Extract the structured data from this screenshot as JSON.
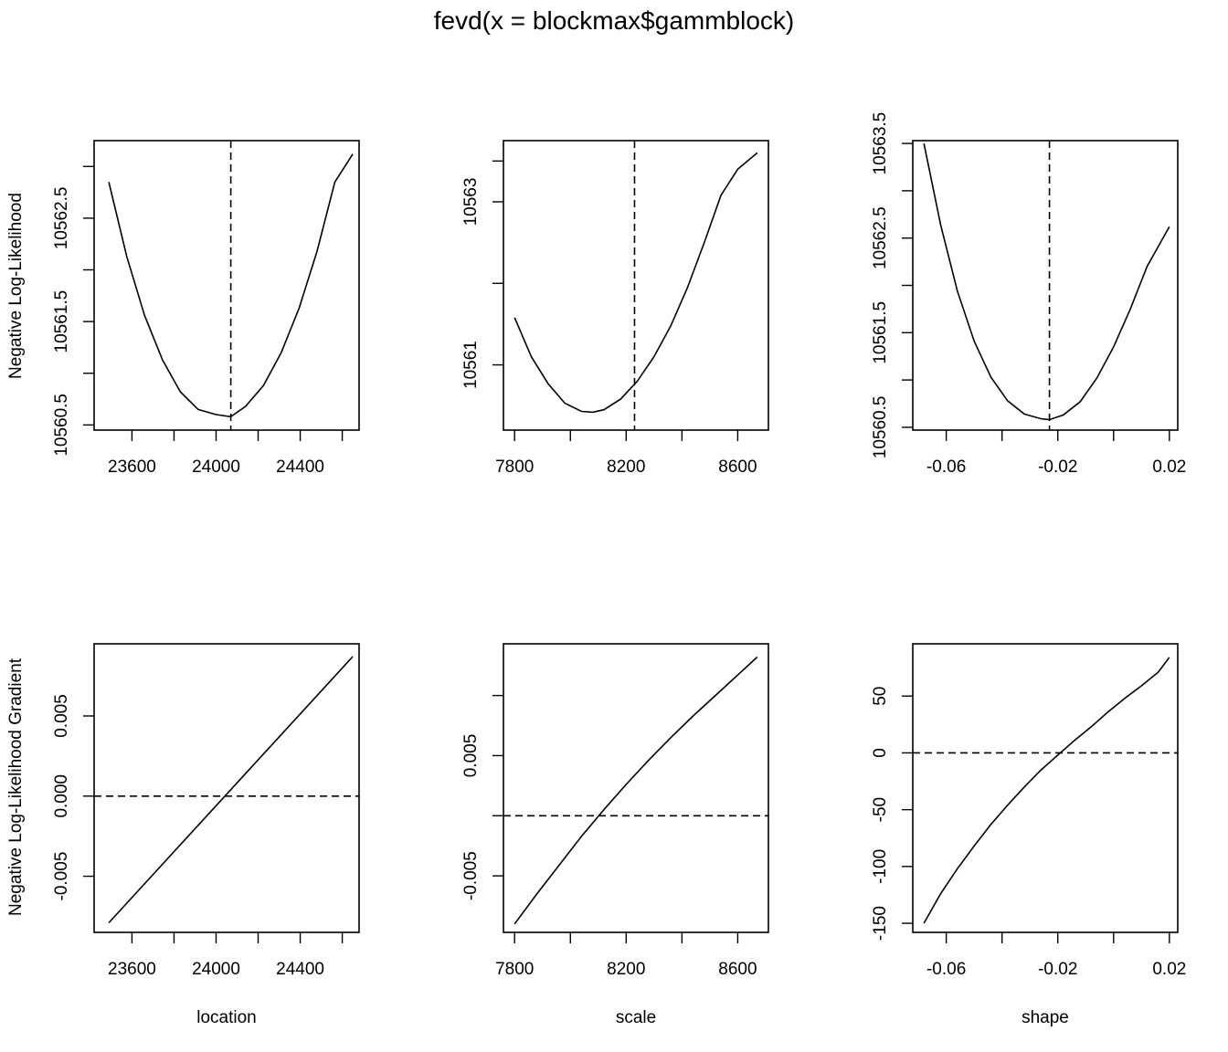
{
  "title": "fevd(x = blockmax$gammblock)",
  "row_labels": [
    "Negative Log-Likelihood",
    "Negative Log-Likelihood Gradient"
  ],
  "col_labels": [
    "location",
    "scale",
    "shape"
  ],
  "chart_data": [
    {
      "type": "line",
      "row": 0,
      "col": 0,
      "grid": false,
      "xlim": [
        23420,
        24680
      ],
      "ylim": [
        10560.45,
        10563.25
      ],
      "xticks": [
        23600,
        23800,
        24000,
        24200,
        24400,
        24600
      ],
      "xtick_labels": [
        "23600",
        "",
        "24000",
        "",
        "24400",
        ""
      ],
      "yticks": [
        10560.5,
        10561,
        10561.5,
        10562,
        10562.5,
        10563
      ],
      "ytick_labels": [
        "10560.5",
        "",
        "10561.5",
        "",
        "10562.5",
        ""
      ],
      "series": [
        {
          "style": "solid",
          "x": [
            23490,
            23575,
            23660,
            23745,
            23830,
            23915,
            24000,
            24070,
            24140,
            24225,
            24310,
            24395,
            24480,
            24565,
            24650
          ],
          "y": [
            10562.85,
            10562.13,
            10561.56,
            10561.13,
            10560.82,
            10560.65,
            10560.6,
            10560.58,
            10560.68,
            10560.88,
            10561.2,
            10561.63,
            10562.18,
            10562.85,
            10563.12
          ]
        },
        {
          "style": "dashed",
          "vline": 24070
        }
      ]
    },
    {
      "type": "line",
      "row": 0,
      "col": 1,
      "grid": false,
      "xlim": [
        7760,
        8710
      ],
      "ylim": [
        10560.2,
        10563.75
      ],
      "xticks": [
        7800,
        8000,
        8200,
        8400,
        8600
      ],
      "xtick_labels": [
        "7800",
        "",
        "8200",
        "",
        "8600"
      ],
      "yticks": [
        10561,
        10562,
        10563
      ],
      "ytick_labels": [
        "10561",
        "",
        "10563"
      ],
      "extra_yticks": [
        10563.5
      ],
      "series": [
        {
          "style": "solid",
          "x": [
            7800,
            7860,
            7920,
            7980,
            8040,
            8080,
            8120,
            8180,
            8240,
            8300,
            8360,
            8420,
            8480,
            8540,
            8600,
            8670
          ],
          "y": [
            10561.58,
            10561.1,
            10560.77,
            10560.53,
            10560.43,
            10560.42,
            10560.45,
            10560.58,
            10560.8,
            10561.1,
            10561.48,
            10561.95,
            10562.5,
            10563.08,
            10563.4,
            10563.6
          ]
        },
        {
          "style": "dashed",
          "vline": 8230
        }
      ]
    },
    {
      "type": "line",
      "row": 0,
      "col": 2,
      "grid": false,
      "xlim": [
        -0.072,
        0.023
      ],
      "ylim": [
        10560.47,
        10563.53
      ],
      "xticks": [
        -0.06,
        -0.04,
        -0.02,
        0,
        0.02
      ],
      "xtick_labels": [
        "-0.06",
        "",
        "-0.02",
        "",
        "0.02"
      ],
      "yticks": [
        10560.5,
        10561,
        10561.5,
        10562,
        10562.5,
        10563,
        10563.5
      ],
      "ytick_labels": [
        "10560.5",
        "",
        "10561.5",
        "",
        "10562.5",
        "",
        "10563.5"
      ],
      "series": [
        {
          "style": "solid",
          "x": [
            -0.068,
            -0.062,
            -0.056,
            -0.05,
            -0.044,
            -0.038,
            -0.032,
            -0.026,
            -0.023,
            -0.018,
            -0.012,
            -0.006,
            0,
            0.006,
            0.012,
            0.02
          ],
          "y": [
            10563.5,
            10562.64,
            10561.94,
            10561.41,
            10561.03,
            10560.78,
            10560.64,
            10560.59,
            10560.58,
            10560.63,
            10560.77,
            10561.02,
            10561.35,
            10561.75,
            10562.2,
            10562.62
          ]
        },
        {
          "style": "dashed",
          "vline": -0.023
        }
      ]
    },
    {
      "type": "line",
      "row": 1,
      "col": 0,
      "grid": false,
      "xlim": [
        23420,
        24680
      ],
      "ylim": [
        -0.0085,
        0.0095
      ],
      "xticks": [
        23600,
        23800,
        24000,
        24200,
        24400,
        24600
      ],
      "xtick_labels": [
        "23600",
        "",
        "24000",
        "",
        "24400",
        ""
      ],
      "yticks": [
        -0.005,
        0,
        0.005
      ],
      "ytick_labels": [
        "-0.005",
        "0.000",
        "0.005"
      ],
      "series": [
        {
          "style": "solid",
          "x": [
            23490,
            24650
          ],
          "y": [
            -0.0079,
            0.0087
          ]
        },
        {
          "style": "dashed",
          "hline": 0
        }
      ]
    },
    {
      "type": "line",
      "row": 1,
      "col": 1,
      "grid": false,
      "xlim": [
        7760,
        8710
      ],
      "ylim": [
        -0.0097,
        0.0143
      ],
      "xticks": [
        7800,
        8000,
        8200,
        8400,
        8600
      ],
      "xtick_labels": [
        "7800",
        "",
        "8200",
        "",
        "8600"
      ],
      "yticks": [
        -0.005,
        0,
        0.005,
        0.01
      ],
      "ytick_labels": [
        "-0.005",
        "",
        "0.005",
        ""
      ],
      "series": [
        {
          "style": "solid",
          "x": [
            7800,
            7880,
            7960,
            8040,
            8120,
            8200,
            8280,
            8360,
            8440,
            8520,
            8600,
            8670
          ],
          "y": [
            -0.009,
            -0.0065,
            -0.0041,
            -0.0017,
            0.0005,
            0.0026,
            0.0046,
            0.0065,
            0.0083,
            0.01,
            0.0117,
            0.0132
          ]
        },
        {
          "style": "dashed",
          "hline": 0
        }
      ]
    },
    {
      "type": "line",
      "row": 1,
      "col": 2,
      "grid": false,
      "xlim": [
        -0.072,
        0.023
      ],
      "ylim": [
        -158,
        96
      ],
      "xticks": [
        -0.06,
        -0.04,
        -0.02,
        0,
        0.02
      ],
      "xtick_labels": [
        "-0.06",
        "",
        "-0.02",
        "",
        "0.02"
      ],
      "yticks": [
        -150,
        -100,
        -50,
        0,
        50
      ],
      "ytick_labels": [
        "-150",
        "-100",
        "-50",
        "0",
        "50"
      ],
      "series": [
        {
          "style": "solid",
          "x": [
            -0.068,
            -0.062,
            -0.056,
            -0.05,
            -0.044,
            -0.038,
            -0.032,
            -0.026,
            -0.02,
            -0.014,
            -0.008,
            -0.002,
            0.004,
            0.01,
            0.016,
            0.02
          ],
          "y": [
            -150,
            -124,
            -102,
            -82,
            -63,
            -46,
            -30,
            -15,
            -2,
            11,
            23,
            36,
            48,
            59,
            71,
            84
          ]
        },
        {
          "style": "dashed",
          "hline": 0
        }
      ]
    }
  ]
}
